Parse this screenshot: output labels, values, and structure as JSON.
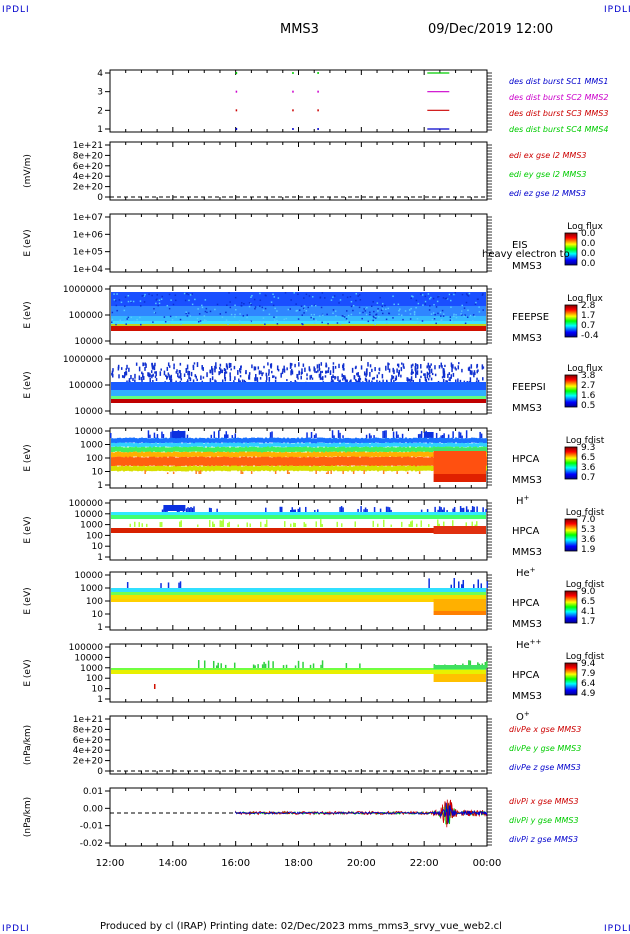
{
  "header": {
    "corner_tl": "IPDLI",
    "corner_tr": "IPDLI",
    "corner_bl": "IPDLI",
    "corner_br": "IPDLI",
    "spacecraft": "MMS3",
    "datetime": "09/Dec/2019 12:00"
  },
  "footer": {
    "text": "Produced by cl (IRAP)    Printing date: 02/Dec/2023    mms_mms3_srvy_vue_web2.cl"
  },
  "colors": {
    "c1": "#000080",
    "c2": "#cc00cc",
    "c3": "#cc0000",
    "c4": "#00cc00",
    "x": "#cc0000",
    "y": "#00cc00",
    "z": "#0000cc"
  },
  "x_axis": {
    "ticks": [
      "12:00",
      "14:00",
      "16:00",
      "18:00",
      "20:00",
      "22:00",
      "00:00"
    ]
  },
  "chart_data": [
    {
      "type": "scatter",
      "id": "burst",
      "y_ticks": [
        "4",
        "3",
        "2",
        "1"
      ],
      "legend": [
        "des dist burst SC1 MMS1",
        "des dist burst SC2 MMS2",
        "des dist burst SC3 MMS3",
        "des dist burst SC4 MMS4"
      ],
      "marks_hours": [
        16.0,
        17.8,
        18.6
      ],
      "bar_hours": [
        22.1,
        22.8
      ]
    },
    {
      "type": "line",
      "id": "edi",
      "ylabel": "(mV/m)",
      "y_ticks": [
        "1e+21",
        "8e+20",
        "6e+20",
        "4e+20",
        "2e+20",
        "0"
      ],
      "legend": [
        "edi ex gse l2 MMS3",
        "edi ey gse l2 MMS3",
        "edi ez gse l2 MMS3"
      ]
    },
    {
      "type": "heatmap",
      "id": "eis",
      "ylabel": "E (eV)",
      "y_ticks": [
        "1e+07",
        "1e+06",
        "1e+05",
        "1e+04"
      ],
      "labels": [
        "EIS",
        "MMS3"
      ],
      "overlap_text": "heavy electron to",
      "cb_title": "Log flux",
      "cb_ticks": [
        "0.0",
        "0.0",
        "0.0",
        "0.0"
      ]
    },
    {
      "type": "heatmap",
      "id": "feepse",
      "ylabel": "E (eV)",
      "y_ticks": [
        "1000000",
        "100000",
        "10000"
      ],
      "labels": [
        "FEEPSE",
        "MMS3"
      ],
      "cb_title": "Log flux",
      "cb_ticks": [
        "2.8",
        "1.7",
        "0.7",
        "-0.4"
      ]
    },
    {
      "type": "heatmap",
      "id": "feepsi",
      "ylabel": "E (eV)",
      "y_ticks": [
        "1000000",
        "100000",
        "10000"
      ],
      "labels": [
        "FEEPSI",
        "MMS3"
      ],
      "cb_title": "Log flux",
      "cb_ticks": [
        "3.8",
        "2.7",
        "1.6",
        "0.5"
      ]
    },
    {
      "type": "heatmap",
      "id": "hpca_h",
      "ylabel": "E (eV)",
      "y_ticks": [
        "10000",
        "1000",
        "100",
        "10",
        "1"
      ],
      "labels": [
        "HPCA",
        "MMS3"
      ],
      "species": "H",
      "species_sup": "+",
      "cb_title": "Log fdist",
      "cb_ticks": [
        "9.3",
        "6.5",
        "3.6",
        "0.7"
      ]
    },
    {
      "type": "heatmap",
      "id": "hpca_he",
      "ylabel": "E (eV)",
      "y_ticks": [
        "100000",
        "10000",
        "1000",
        "100",
        "10",
        "1"
      ],
      "labels": [
        "HPCA",
        "MMS3"
      ],
      "species": "He",
      "species_sup": "+",
      "cb_title": "Log fdist",
      "cb_ticks": [
        "7.0",
        "5.3",
        "3.6",
        "1.9"
      ]
    },
    {
      "type": "heatmap",
      "id": "hpca_hepp",
      "ylabel": "E (eV)",
      "y_ticks": [
        "10000",
        "1000",
        "100",
        "10",
        "1"
      ],
      "labels": [
        "HPCA",
        "MMS3"
      ],
      "species": "He",
      "species_sup": "++",
      "cb_title": "Log fdist",
      "cb_ticks": [
        "9.0",
        "6.5",
        "4.1",
        "1.7"
      ]
    },
    {
      "type": "heatmap",
      "id": "hpca_o",
      "ylabel": "E (eV)",
      "y_ticks": [
        "100000",
        "10000",
        "1000",
        "100",
        "10",
        "1"
      ],
      "labels": [
        "HPCA",
        "MMS3"
      ],
      "species": "O",
      "species_sup": "+",
      "cb_title": "Log fdist",
      "cb_ticks": [
        "9.4",
        "7.9",
        "6.4",
        "4.9"
      ]
    },
    {
      "type": "line",
      "id": "divpe",
      "ylabel": "(nPa/km)",
      "y_ticks": [
        "1e+21",
        "8e+20",
        "6e+20",
        "4e+20",
        "2e+20",
        "0"
      ],
      "legend": [
        "divPe x gse MMS3",
        "divPe y gse MMS3",
        "divPe z gse MMS3"
      ]
    },
    {
      "type": "line",
      "id": "divpi",
      "ylabel": "(nPa/km)",
      "y_ticks": [
        "0.01",
        "0.00",
        "-0.01",
        "-0.02"
      ],
      "legend": [
        "divPi x gse MMS3",
        "divPi y gse MMS3",
        "divPi z gse MMS3"
      ]
    }
  ]
}
